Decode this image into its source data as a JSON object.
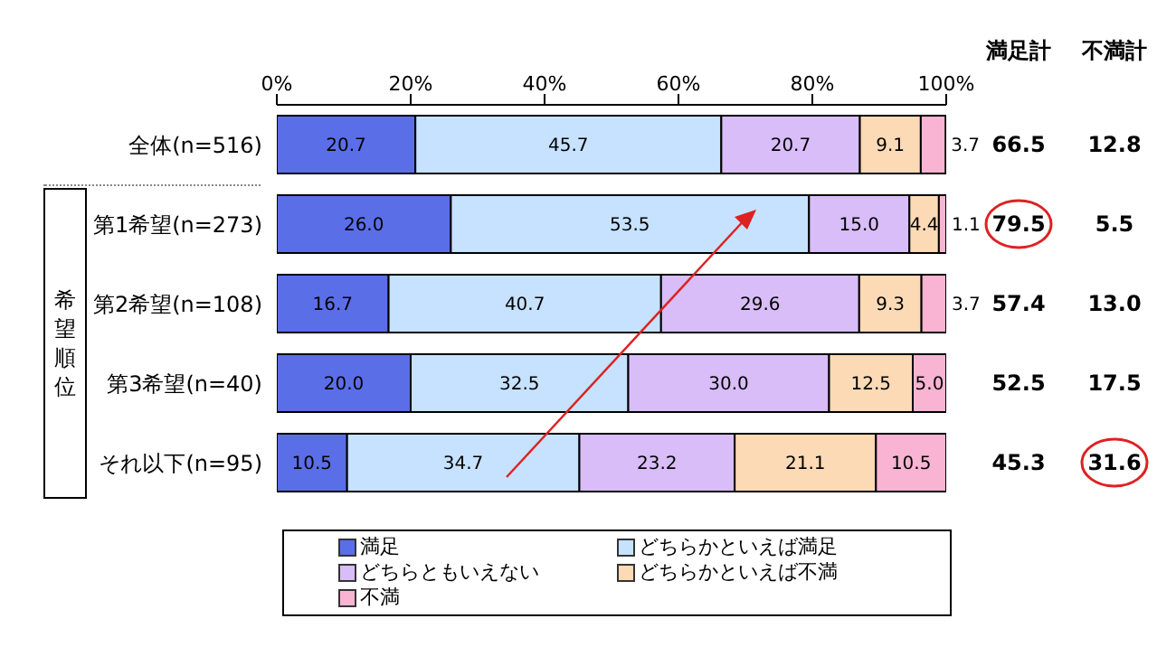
{
  "chart_data": {
    "type": "bar",
    "orientation": "horizontal",
    "stacked": true,
    "legend": "bottom",
    "grid": false,
    "categories": [
      "全体(n=516)",
      "第1希望(n=273)",
      "第2希望(n=108)",
      "第3希望(n=40)",
      "それ以下(n=95)"
    ],
    "xlim": [
      0,
      100
    ],
    "xticks": [
      {
        "value": 0,
        "label": "0%"
      },
      {
        "value": 20,
        "label": "20%"
      },
      {
        "value": 40,
        "label": "40%"
      },
      {
        "value": 60,
        "label": "60%"
      },
      {
        "value": 80,
        "label": "80%"
      },
      {
        "value": 100,
        "label": "100%"
      }
    ],
    "series": [
      {
        "name": "満足",
        "color": "#5a6ee8",
        "values": [
          20.7,
          26.0,
          16.7,
          20.0,
          10.5
        ],
        "value_labels": [
          "20.7",
          "26.0",
          "16.7",
          "20.0",
          "10.5"
        ]
      },
      {
        "name": "どちらかといえば満足",
        "color": "#c6e2ff",
        "values": [
          45.7,
          53.5,
          40.7,
          32.5,
          34.7
        ],
        "value_labels": [
          "45.7",
          "53.5",
          "40.7",
          "32.5",
          "34.7"
        ]
      },
      {
        "name": "どちらともいえない",
        "color": "#d8bdf8",
        "values": [
          20.7,
          15.0,
          29.6,
          30.0,
          23.2
        ],
        "value_labels": [
          "20.7",
          "15.0",
          "29.6",
          "30.0",
          "23.2"
        ]
      },
      {
        "name": "どちらかといえば不満",
        "color": "#fcdab5",
        "values": [
          9.1,
          4.4,
          9.3,
          12.5,
          21.1
        ],
        "value_labels": [
          "9.1",
          "4.4",
          "9.3",
          "12.5",
          "21.1"
        ]
      },
      {
        "name": "不満",
        "color": "#f8b4d2",
        "values": [
          3.7,
          1.1,
          3.7,
          5.0,
          10.5
        ],
        "value_labels": [
          "3.7",
          "1.1",
          "3.7",
          "5.0",
          "10.5"
        ]
      }
    ],
    "annotations": [
      "希望順位",
      "満足計",
      "不満計",
      "66.5",
      "12.8",
      "79.5",
      "5.5",
      "57.4",
      "13.0",
      "52.5",
      "17.5",
      "45.3",
      "31.6"
    ]
  }
}
